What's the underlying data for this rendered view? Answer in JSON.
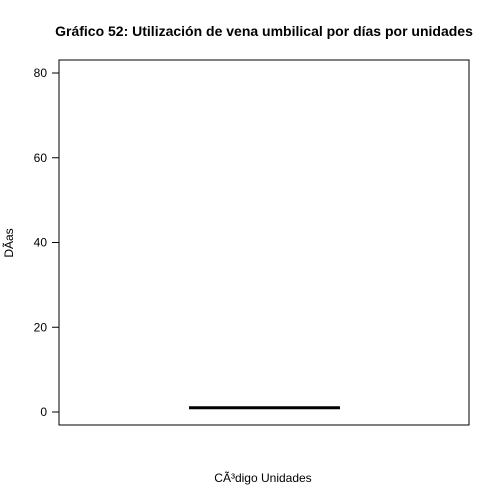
{
  "chart_data": {
    "type": "boxplot",
    "title": "Gráfico 52: Utilización de vena umbilical por días por unidades",
    "xlabel": "CÃ³digo Unidades",
    "ylabel": "DÃ­as",
    "ylim": [
      0,
      80
    ],
    "yticks": [
      0,
      20,
      40,
      60,
      80
    ],
    "series": [
      {
        "min": 1,
        "q1": 1,
        "median": 1,
        "q3": 1,
        "max": 1
      }
    ],
    "grid": false,
    "legend": "none",
    "colors": {
      "line": "#000000",
      "background": "#ffffff"
    }
  }
}
